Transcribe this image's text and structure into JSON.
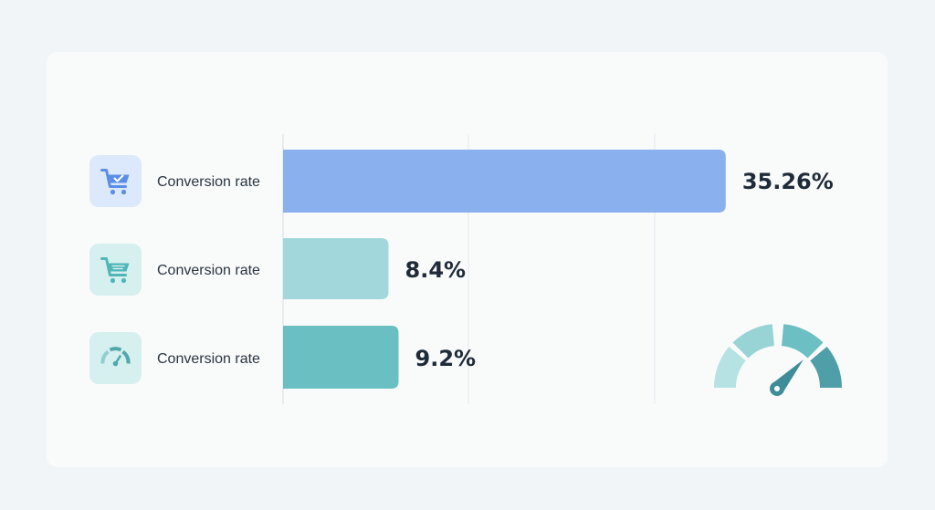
{
  "colors": {
    "bar_blue": "#8ab0ee",
    "bar_light_teal": "#a2d8dc",
    "bar_teal": "#69bfc2",
    "icon_bg_blue": "#dce8fb",
    "icon_bg_teal": "#d6efef",
    "gauge_segments": [
      "#b6e2e3",
      "#98d3d5",
      "#6cbfc3",
      "#4f9fa9"
    ],
    "gauge_needle": "#3e8d99"
  },
  "chart_data": {
    "type": "bar",
    "orientation": "horizontal",
    "categories": [
      "Conversion rate",
      "Conversion rate",
      "Conversion rate"
    ],
    "values": [
      35.26,
      8.4,
      9.2
    ],
    "value_labels": [
      "35.26%",
      "8.4%",
      "9.2%"
    ],
    "icons": [
      "cart-check-icon",
      "cart-list-icon",
      "gauge-icon"
    ],
    "grid": true,
    "xlim": [
      0,
      36
    ]
  }
}
